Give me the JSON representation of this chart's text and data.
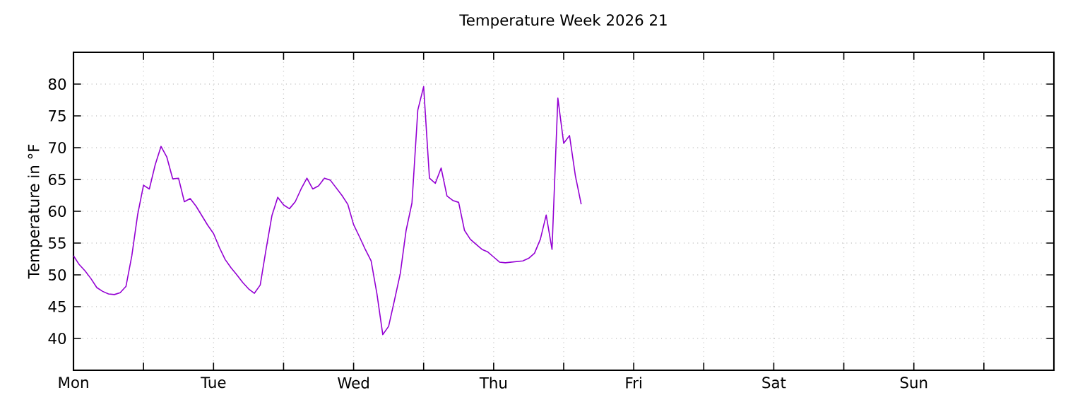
{
  "chart_data": {
    "type": "line",
    "title": "Temperature Week 2026 21",
    "ylabel": "Temperature in °F",
    "categories": [
      "Mon",
      null,
      null,
      null,
      null,
      null,
      null,
      null,
      null,
      null,
      null,
      null,
      null,
      null,
      null,
      null,
      null,
      null,
      null,
      null,
      null,
      null,
      null,
      null,
      "Tue",
      null,
      null,
      null,
      null,
      null,
      null,
      null,
      null,
      null,
      null,
      null,
      null,
      null,
      null,
      null,
      null,
      null,
      null,
      null,
      null,
      null,
      null,
      null,
      "Wed",
      null,
      null,
      null,
      null,
      null,
      null,
      null,
      null,
      null,
      null,
      null,
      null,
      null,
      null,
      null,
      null,
      null,
      null,
      null,
      null,
      null,
      null,
      null,
      "Thu",
      null,
      null,
      null,
      null,
      null,
      null,
      null,
      null,
      null,
      null,
      null,
      null,
      null,
      null,
      null,
      null,
      null,
      null,
      null,
      null,
      null,
      null,
      null,
      "Fri",
      null,
      null,
      null,
      null,
      null,
      null,
      null,
      null,
      null,
      null,
      null,
      null,
      null,
      null,
      null,
      null,
      null,
      null,
      null,
      null,
      null,
      null,
      null,
      "Sat",
      null,
      null,
      null,
      null,
      null,
      null,
      null,
      null,
      null,
      null,
      null,
      null,
      null,
      null,
      null,
      null,
      null,
      null,
      null,
      null,
      null,
      null,
      null,
      "Sun",
      null,
      null,
      null,
      null,
      null,
      null,
      null,
      null,
      null,
      null,
      null,
      null,
      null,
      null,
      null,
      null,
      null,
      null,
      null,
      null,
      null,
      null,
      null
    ],
    "ylim": [
      35,
      85
    ],
    "yticks": [
      40,
      45,
      50,
      55,
      60,
      65,
      70,
      75,
      80
    ],
    "grid": true,
    "marker": "none",
    "line_style": "solid",
    "series": [
      {
        "color": "#9400d3",
        "values": [
          53.0,
          51.6,
          50.6,
          49.4,
          48.0,
          47.4,
          47.0,
          46.9,
          47.2,
          48.2,
          53.0,
          59.5,
          64.1,
          63.5,
          67.3,
          70.2,
          68.5,
          65.1,
          65.2,
          61.5,
          62.0,
          60.8,
          59.3,
          57.8,
          56.5,
          54.3,
          52.4,
          51.1,
          50.0,
          48.8,
          47.8,
          47.1,
          48.4,
          54.0,
          59.3,
          62.2,
          61.0,
          60.4,
          61.5,
          63.5,
          65.2,
          63.5,
          64.0,
          65.2,
          64.9,
          63.7,
          62.5,
          61.1,
          57.9,
          56.0,
          54.0,
          52.2,
          47.0,
          40.6,
          41.9,
          46.0,
          50.2,
          57.0,
          61.3,
          75.9,
          79.6,
          65.2,
          64.4,
          66.8,
          62.4,
          61.7,
          61.4,
          57.0,
          55.6,
          54.8,
          54.0,
          53.6,
          52.8,
          52.0,
          51.9,
          52.0,
          52.1,
          52.2,
          52.6,
          53.4,
          55.6,
          59.4,
          54.0,
          77.8,
          70.7,
          71.9,
          65.6,
          61.1,
          null,
          null,
          null,
          null,
          null,
          null,
          null,
          null,
          null,
          null,
          null,
          null,
          null,
          null,
          null,
          null,
          null,
          null,
          null,
          null,
          null,
          null,
          null,
          null,
          null,
          null,
          null,
          null,
          null,
          null,
          null,
          null,
          null,
          null,
          null,
          null,
          null,
          null,
          null,
          null,
          null,
          null,
          null,
          null,
          null,
          null,
          null,
          null,
          null,
          null,
          null,
          null,
          null,
          null,
          null,
          null,
          null,
          null,
          null,
          null,
          null,
          null,
          null,
          null,
          null,
          null,
          null,
          null,
          null,
          null,
          null,
          null,
          null,
          null,
          null,
          null,
          null,
          null,
          null,
          null
        ]
      }
    ]
  }
}
